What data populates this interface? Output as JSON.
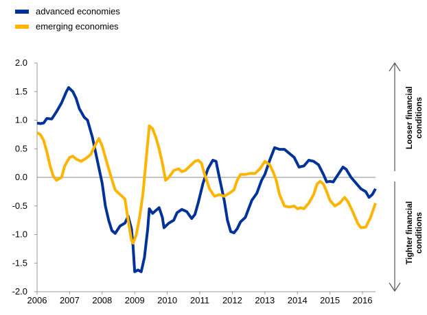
{
  "chart_data": {
    "type": "line",
    "series": [
      {
        "name": "advanced economies",
        "color": "#003299",
        "x": [
          2006.0,
          2006.1,
          2006.2,
          2006.3,
          2006.45,
          2006.6,
          2006.75,
          2006.9,
          2006.97,
          2007.1,
          2007.2,
          2007.3,
          2007.45,
          2007.55,
          2007.7,
          2007.85,
          2008.0,
          2008.1,
          2008.2,
          2008.3,
          2008.4,
          2008.55,
          2008.7,
          2008.8,
          2008.9,
          2008.95,
          2009.0,
          2009.1,
          2009.2,
          2009.3,
          2009.4,
          2009.45,
          2009.55,
          2009.65,
          2009.75,
          2009.85,
          2009.9,
          2010.05,
          2010.2,
          2010.3,
          2010.45,
          2010.6,
          2010.75,
          2010.85,
          2010.95,
          2011.1,
          2011.25,
          2011.4,
          2011.5,
          2011.6,
          2011.75,
          2011.85,
          2011.95,
          2012.05,
          2012.15,
          2012.25,
          2012.4,
          2012.5,
          2012.6,
          2012.75,
          2012.9,
          2013.0,
          2013.15,
          2013.3,
          2013.45,
          2013.6,
          2013.75,
          2013.9,
          2014.05,
          2014.2,
          2014.35,
          2014.5,
          2014.65,
          2014.8,
          2014.9,
          2015.0,
          2015.1,
          2015.25,
          2015.4,
          2015.5,
          2015.65,
          2015.8,
          2015.95,
          2016.1,
          2016.2,
          2016.3,
          2016.4
        ],
        "values": [
          0.95,
          0.94,
          0.95,
          1.03,
          1.02,
          1.15,
          1.3,
          1.5,
          1.57,
          1.5,
          1.38,
          1.2,
          1.05,
          1.0,
          0.7,
          0.3,
          -0.1,
          -0.5,
          -0.75,
          -0.93,
          -0.98,
          -0.85,
          -0.8,
          -0.68,
          -0.9,
          -1.2,
          -1.65,
          -1.62,
          -1.65,
          -1.4,
          -0.9,
          -0.55,
          -0.63,
          -0.58,
          -0.53,
          -0.7,
          -0.88,
          -0.8,
          -0.75,
          -0.62,
          -0.56,
          -0.6,
          -0.72,
          -0.65,
          -0.45,
          -0.1,
          0.15,
          0.3,
          0.28,
          0.0,
          -0.4,
          -0.75,
          -0.95,
          -0.97,
          -0.9,
          -0.78,
          -0.7,
          -0.55,
          -0.4,
          -0.28,
          -0.05,
          0.05,
          0.3,
          0.52,
          0.49,
          0.49,
          0.42,
          0.35,
          0.18,
          0.2,
          0.3,
          0.28,
          0.22,
          0.05,
          -0.08,
          -0.07,
          -0.08,
          0.05,
          0.18,
          0.14,
          0.0,
          -0.1,
          -0.2,
          -0.25,
          -0.35,
          -0.3,
          -0.2
        ]
      },
      {
        "name": "emerging economies",
        "color": "#ffb400",
        "x": [
          2006.0,
          2006.1,
          2006.2,
          2006.3,
          2006.4,
          2006.5,
          2006.6,
          2006.75,
          2006.85,
          2007.0,
          2007.1,
          2007.2,
          2007.35,
          2007.5,
          2007.65,
          2007.8,
          2007.9,
          2008.0,
          2008.1,
          2008.25,
          2008.4,
          2008.55,
          2008.7,
          2008.8,
          2008.9,
          2008.95,
          2009.05,
          2009.15,
          2009.25,
          2009.35,
          2009.45,
          2009.55,
          2009.65,
          2009.75,
          2009.85,
          2009.95,
          2010.05,
          2010.2,
          2010.35,
          2010.45,
          2010.55,
          2010.7,
          2010.85,
          2010.95,
          2011.05,
          2011.15,
          2011.3,
          2011.45,
          2011.6,
          2011.75,
          2011.9,
          2012.05,
          2012.15,
          2012.25,
          2012.4,
          2012.55,
          2012.7,
          2012.85,
          2013.0,
          2013.15,
          2013.25,
          2013.35,
          2013.45,
          2013.6,
          2013.75,
          2013.9,
          2014.0,
          2014.1,
          2014.2,
          2014.35,
          2014.5,
          2014.6,
          2014.7,
          2014.8,
          2014.9,
          2015.0,
          2015.15,
          2015.3,
          2015.45,
          2015.55,
          2015.7,
          2015.85,
          2015.95,
          2016.1,
          2016.25,
          2016.4
        ],
        "values": [
          0.78,
          0.75,
          0.65,
          0.45,
          0.2,
          0.02,
          -0.05,
          0.0,
          0.2,
          0.35,
          0.37,
          0.32,
          0.28,
          0.33,
          0.4,
          0.58,
          0.68,
          0.55,
          0.35,
          0.05,
          -0.22,
          -0.3,
          -0.38,
          -0.75,
          -1.1,
          -1.15,
          -1.0,
          -0.7,
          -0.3,
          0.3,
          0.9,
          0.85,
          0.7,
          0.5,
          0.25,
          -0.05,
          0.0,
          0.12,
          0.15,
          0.1,
          0.12,
          0.2,
          0.28,
          0.3,
          0.25,
          0.05,
          -0.2,
          -0.33,
          -0.3,
          -0.33,
          -0.28,
          -0.22,
          -0.05,
          0.05,
          0.05,
          0.07,
          0.07,
          0.15,
          0.28,
          0.22,
          0.1,
          -0.05,
          -0.3,
          -0.5,
          -0.52,
          -0.5,
          -0.55,
          -0.53,
          -0.55,
          -0.45,
          -0.3,
          -0.12,
          -0.07,
          -0.12,
          -0.25,
          -0.4,
          -0.5,
          -0.45,
          -0.35,
          -0.42,
          -0.6,
          -0.8,
          -0.88,
          -0.87,
          -0.7,
          -0.45
        ]
      }
    ],
    "xlim": [
      2006,
      2016.4
    ],
    "xticks": [
      2006,
      2007,
      2008,
      2009,
      2010,
      2011,
      2012,
      2013,
      2014,
      2015,
      2016
    ],
    "ylim": [
      -2.0,
      2.0
    ],
    "yticks": [
      {
        "value": -2,
        "label": "-2.0"
      },
      {
        "value": -1.5,
        "label": "-1.5"
      },
      {
        "value": -1,
        "label": "-1.0"
      },
      {
        "value": -0.5,
        "label": "-0.5"
      },
      {
        "value": 0,
        "label": "0.0"
      },
      {
        "value": 0.5,
        "label": "0.5"
      },
      {
        "value": 1,
        "label": "1.0"
      },
      {
        "value": 1.5,
        "label": "1.5"
      },
      {
        "value": 2,
        "label": "2.0"
      }
    ],
    "annotations": [
      [
        "Looser financial",
        "conditions"
      ],
      [
        "Tighter financial",
        "conditions"
      ]
    ]
  }
}
